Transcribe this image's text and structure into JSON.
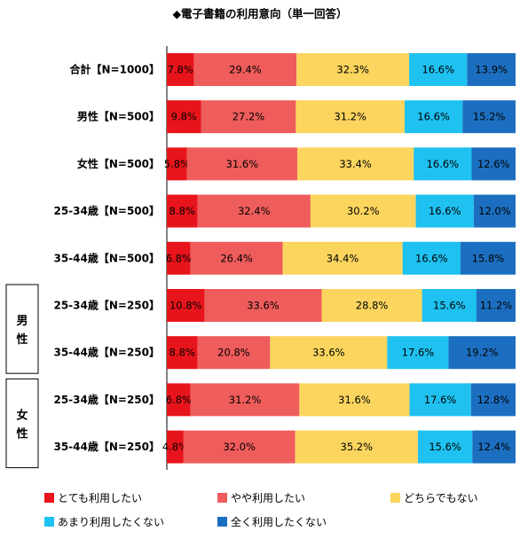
{
  "chart_data": {
    "type": "bar",
    "stacked": true,
    "orientation": "horizontal",
    "title": "◆電子書籍の利用意向（単一回答）",
    "unit": "%",
    "xlim": [
      0,
      100
    ],
    "grid": false,
    "legend_position": "bottom",
    "categories": [
      "合計【N=1000】",
      "男性【N=500】",
      "女性【N=500】",
      "25-34歳【N=500】",
      "35-44歳【N=500】",
      "25-34歳【N=250】",
      "35-44歳【N=250】",
      "25-34歳【N=250】",
      "35-44歳【N=250】"
    ],
    "groups": [
      {
        "label": "男性",
        "rows": [
          5,
          6
        ]
      },
      {
        "label": "女性",
        "rows": [
          7,
          8
        ]
      }
    ],
    "series": [
      {
        "name": "とても利用したい",
        "color": "#e8141b",
        "values": [
          7.8,
          9.8,
          5.8,
          8.8,
          6.8,
          10.8,
          8.8,
          6.8,
          4.8
        ]
      },
      {
        "name": "やや利用したい",
        "color": "#ef5c5c",
        "values": [
          29.4,
          27.2,
          31.6,
          32.4,
          26.4,
          33.6,
          20.8,
          31.2,
          32.0
        ]
      },
      {
        "name": "どちらでもない",
        "color": "#fbd55e",
        "values": [
          32.3,
          31.2,
          33.4,
          30.2,
          34.4,
          28.8,
          33.6,
          31.6,
          35.2
        ]
      },
      {
        "name": "あまり利用したくない",
        "color": "#1ec1f0",
        "values": [
          16.6,
          16.6,
          16.6,
          16.6,
          16.6,
          15.6,
          17.6,
          17.6,
          15.6
        ]
      },
      {
        "name": "全く利用したくない",
        "color": "#1c6fc0",
        "values": [
          13.9,
          15.2,
          12.6,
          12.0,
          15.8,
          11.2,
          19.2,
          12.8,
          12.4
        ]
      }
    ]
  }
}
